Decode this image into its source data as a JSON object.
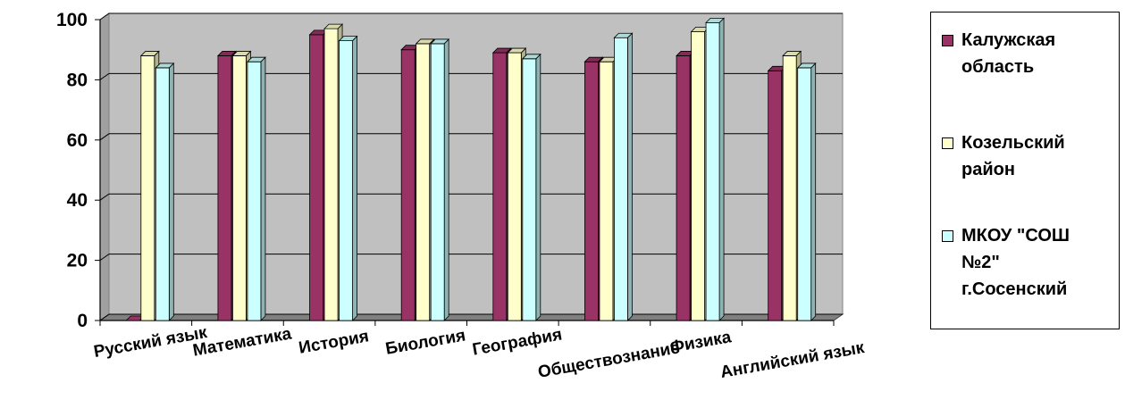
{
  "chart_data": {
    "type": "bar",
    "title": "",
    "xlabel": "",
    "ylabel": "",
    "ylim": [
      0,
      100
    ],
    "yticks": [
      0,
      20,
      40,
      60,
      80,
      100
    ],
    "grid": true,
    "style": "3d-clustered-column",
    "legend_position": "right",
    "categories": [
      "Русский язык",
      "Математика",
      "История",
      "Биология",
      "География",
      "Обществознание",
      "Физика",
      "Английский язык"
    ],
    "series": [
      {
        "name": "Калужская область",
        "color": "#993366",
        "values": [
          0,
          88,
          95,
          90,
          89,
          86,
          88,
          83
        ]
      },
      {
        "name": "Козельский район",
        "color": "#FFFFCC",
        "values": [
          88,
          88,
          97,
          92,
          89,
          86,
          96,
          88
        ]
      },
      {
        "name": "МКОУ \"СОШ №2\" г.Сосенский",
        "color": "#CCFFFF",
        "values": [
          84,
          86,
          93,
          92,
          87,
          94,
          99,
          84
        ]
      }
    ]
  }
}
